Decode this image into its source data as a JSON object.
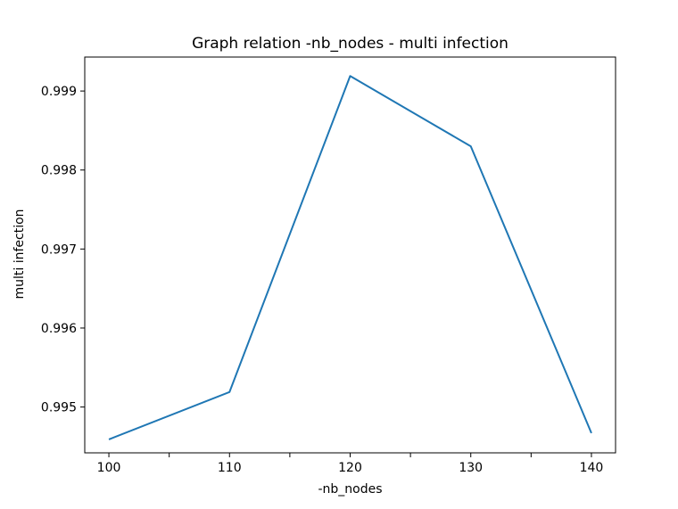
{
  "chart_data": {
    "type": "line",
    "title": "Graph relation -nb_nodes - multi infection",
    "xlabel": "-nb_nodes",
    "ylabel": "multi infection",
    "x": [
      100,
      110,
      120,
      130,
      140
    ],
    "series": [
      {
        "values": [
          0.99459,
          0.99519,
          0.99919,
          0.9983,
          0.99467
        ],
        "color": "#1f77b4"
      }
    ],
    "xlim": [
      98,
      142
    ],
    "ylim": [
      0.99442,
      0.99943
    ],
    "x_ticks": [
      100,
      105,
      110,
      115,
      120,
      125,
      130,
      135,
      140
    ],
    "x_tick_labels": [
      "100",
      "",
      "110",
      "",
      "120",
      "",
      "130",
      "",
      "140"
    ],
    "y_ticks": [
      0.995,
      0.996,
      0.997,
      0.998,
      0.999
    ],
    "y_tick_labels": [
      "0.995",
      "0.996",
      "0.997",
      "0.998",
      "0.999"
    ],
    "grid": false,
    "legend": "none"
  }
}
